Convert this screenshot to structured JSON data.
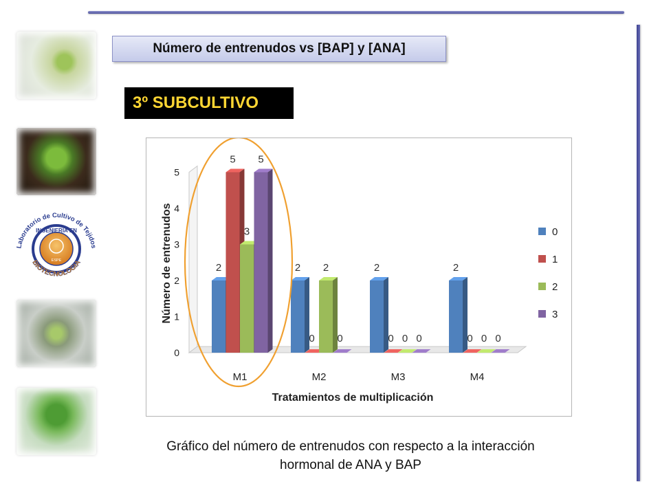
{
  "header": {
    "title": "Número de entrenudos vs [BAP] y [ANA]",
    "subtitle": "3º SUBCULTIVO"
  },
  "logo": {
    "arc_text": "Laboratorio de Cultivo de Tejidos",
    "inner_text": "INGENIERIA EN",
    "bottom_text": "BIOTECNOLOGIA",
    "seal_text": "ESPE"
  },
  "caption": {
    "line1": "Gráfico del número de entrenudos con respecto a la interacción",
    "line2": "hormonal de ANA y BAP"
  },
  "colors": {
    "accent": "#4a4f9a",
    "subtitle_text": "#ffd633",
    "highlight_ellipse": "#f0a030"
  },
  "chart_data": {
    "type": "bar",
    "categories": [
      "M1",
      "M2",
      "M3",
      "M4"
    ],
    "series": [
      {
        "name": "0",
        "values": [
          2,
          2,
          2,
          2
        ],
        "color": "#4f81bd"
      },
      {
        "name": "1",
        "values": [
          5,
          0,
          0,
          0
        ],
        "color": "#c0504d"
      },
      {
        "name": "2",
        "values": [
          3,
          2,
          0,
          0
        ],
        "color": "#9bbb59"
      },
      {
        "name": "3",
        "values": [
          5,
          0,
          0,
          0
        ],
        "color": "#8064a2"
      }
    ],
    "xlabel": "Tratamientos de multiplicación",
    "ylabel": "Número de entrenudos",
    "ylim": [
      0,
      5
    ],
    "yticks": [
      0,
      1,
      2,
      3,
      4,
      5
    ],
    "data_labels": [
      [
        "2",
        "2",
        "2",
        "2"
      ],
      [
        "5",
        "0",
        "0",
        "0"
      ],
      [
        "3",
        "2",
        "0",
        "0"
      ],
      [
        "5",
        "0",
        "0",
        "0"
      ]
    ],
    "legend_position": "right",
    "grid": false,
    "three_d": true,
    "highlighted_category": "M1"
  }
}
